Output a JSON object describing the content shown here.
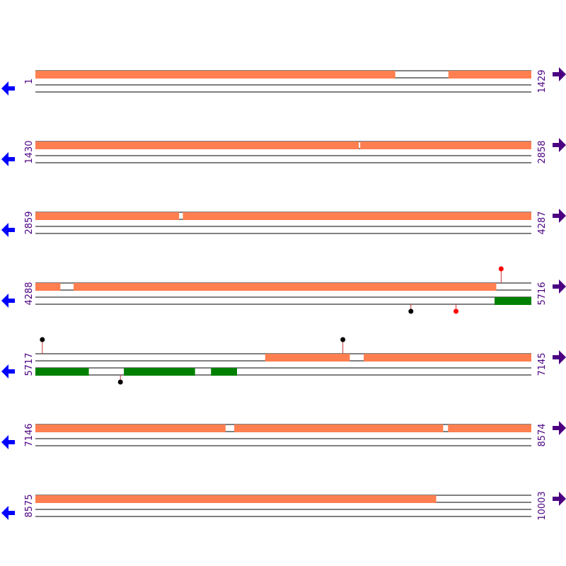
{
  "colors": {
    "upper_feature": "#ff7f50",
    "lower_feature": "#008000",
    "marker_black": "#000000",
    "marker_red": "#ff0000",
    "stem": "#cc3333",
    "left_arrow": "#0000ff",
    "right_arrow": "#4b0082",
    "label": "#4b0082"
  },
  "icons": {
    "left": "arrow-left-icon",
    "right": "arrow-right-icon"
  },
  "rows": [
    {
      "start_label": "1",
      "end_label": "1429",
      "start": 1,
      "end": 1429,
      "upper": [
        [
          1,
          1037
        ],
        [
          1191,
          1429
        ]
      ],
      "lower": [],
      "markers": []
    },
    {
      "start_label": "1430",
      "end_label": "2858",
      "start": 1430,
      "end": 2858,
      "upper": [
        [
          1430,
          2361
        ],
        [
          2366,
          2858
        ]
      ],
      "lower": [],
      "markers": []
    },
    {
      "start_label": "2859",
      "end_label": "4287",
      "start": 2859,
      "end": 4287,
      "upper": [
        [
          2859,
          3272
        ],
        [
          3284,
          4287
        ]
      ],
      "lower": [],
      "markers": []
    },
    {
      "start_label": "4288",
      "end_label": "5716",
      "start": 4288,
      "end": 5716,
      "upper": [
        [
          4288,
          4359
        ],
        [
          4398,
          5615
        ]
      ],
      "lower": [
        [
          5611,
          5716
        ]
      ],
      "markers": [
        {
          "pos": 5630,
          "side": "top",
          "color": "red"
        },
        {
          "pos": 5370,
          "side": "bottom",
          "color": "black"
        },
        {
          "pos": 5500,
          "side": "bottom",
          "color": "red"
        }
      ]
    },
    {
      "start_label": "5717",
      "end_label": "7145",
      "start": 5717,
      "end": 7145,
      "upper": [
        [
          6379,
          6622
        ],
        [
          6663,
          7145
        ]
      ],
      "lower": [
        [
          5717,
          5870
        ],
        [
          5972,
          6176
        ],
        [
          6223,
          6297
        ]
      ],
      "markers": [
        {
          "pos": 5737,
          "side": "top",
          "color": "black"
        },
        {
          "pos": 6603,
          "side": "top",
          "color": "black"
        },
        {
          "pos": 5962,
          "side": "bottom",
          "color": "black"
        }
      ]
    },
    {
      "start_label": "7146",
      "end_label": "8574",
      "start": 7146,
      "end": 8574,
      "upper": [
        [
          7146,
          7693
        ],
        [
          7719,
          8320
        ],
        [
          8335,
          8574
        ]
      ],
      "lower": [],
      "markers": []
    },
    {
      "start_label": "8575",
      "end_label": "10003",
      "start": 8575,
      "end": 10003,
      "upper": [
        [
          8575,
          9729
        ]
      ],
      "lower": [],
      "markers": []
    }
  ]
}
